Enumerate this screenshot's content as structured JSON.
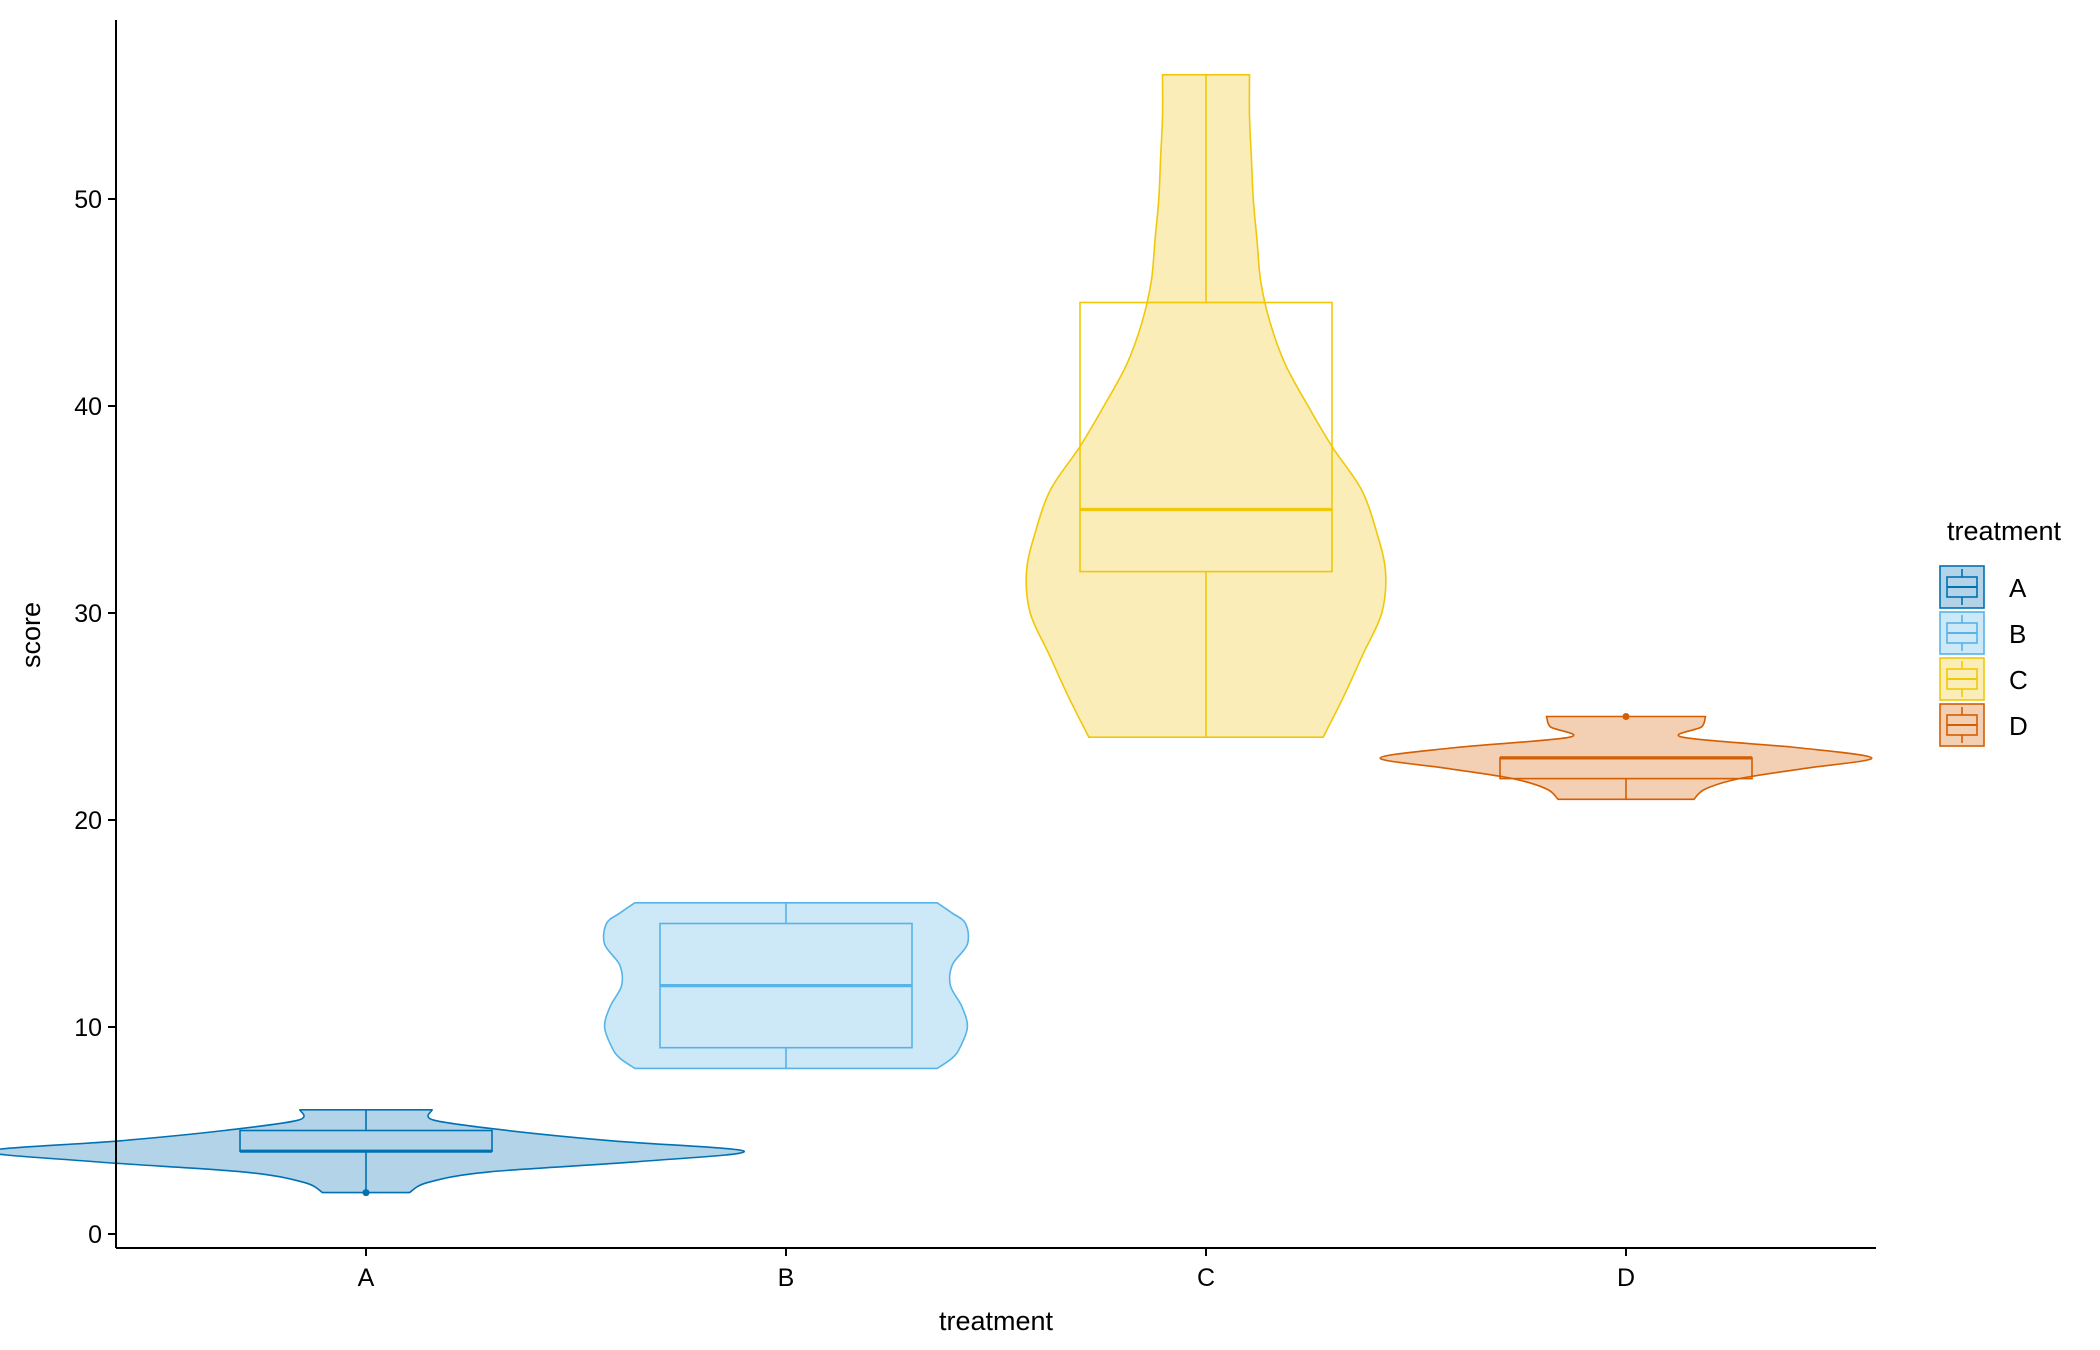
{
  "chart_data": {
    "type": "violin",
    "xlabel": "treatment",
    "ylabel": "score",
    "ylim": [
      0,
      56
    ],
    "yticks": [
      0,
      10,
      20,
      30,
      40,
      50
    ],
    "categories": [
      "A",
      "B",
      "C",
      "D"
    ],
    "legend": {
      "title": "treatment",
      "position": "right",
      "entries": [
        "A",
        "B",
        "C",
        "D"
      ]
    },
    "series": [
      {
        "category": "A",
        "color": "#0072B2",
        "fill": "#B3D3E9",
        "box": {
          "min": 2,
          "q1": 4,
          "median": 4,
          "q3": 5,
          "max": 6
        },
        "outliers": [
          2
        ],
        "violin": [
          [
            2,
            0.23
          ],
          [
            2.5,
            0.33
          ],
          [
            3,
            0.65
          ],
          [
            3.5,
            1.45
          ],
          [
            4,
            2.0
          ],
          [
            4.5,
            1.3
          ],
          [
            5,
            0.75
          ],
          [
            5.5,
            0.36
          ],
          [
            6,
            0.35
          ]
        ]
      },
      {
        "category": "B",
        "color": "#56B4E9",
        "fill": "#CDE8F7",
        "box": {
          "min": 8,
          "q1": 9,
          "median": 12,
          "q3": 15,
          "max": 16
        },
        "outliers": [],
        "violin": [
          [
            8,
            0.8
          ],
          [
            8.5,
            0.88
          ],
          [
            9,
            0.92
          ],
          [
            10,
            0.96
          ],
          [
            11,
            0.93
          ],
          [
            12,
            0.87
          ],
          [
            13,
            0.88
          ],
          [
            14,
            0.96
          ],
          [
            15,
            0.95
          ],
          [
            15.5,
            0.88
          ],
          [
            16,
            0.8
          ]
        ]
      },
      {
        "category": "C",
        "color": "#F0C808",
        "fill": "#FAEDB8",
        "box": {
          "min": 24,
          "q1": 32,
          "median": 35,
          "q3": 45,
          "max": 56
        },
        "outliers": [],
        "violin": [
          [
            24,
            0.62
          ],
          [
            26,
            0.73
          ],
          [
            28,
            0.83
          ],
          [
            30,
            0.93
          ],
          [
            32,
            0.95
          ],
          [
            34,
            0.9
          ],
          [
            36,
            0.82
          ],
          [
            38,
            0.67
          ],
          [
            40,
            0.54
          ],
          [
            42,
            0.42
          ],
          [
            44,
            0.34
          ],
          [
            46,
            0.29
          ],
          [
            48,
            0.27
          ],
          [
            50,
            0.25
          ],
          [
            52,
            0.24
          ],
          [
            54,
            0.23
          ],
          [
            56,
            0.23
          ]
        ]
      },
      {
        "category": "D",
        "color": "#D55E00",
        "fill": "#F3CFB3",
        "box": {
          "min": 21,
          "q1": 22,
          "median": 23,
          "q3": 23,
          "max": 23
        },
        "outliers": [
          25
        ],
        "violin": [
          [
            21,
            0.36
          ],
          [
            21.5,
            0.42
          ],
          [
            22,
            0.6
          ],
          [
            22.5,
            0.95
          ],
          [
            23,
            1.3
          ],
          [
            23.5,
            0.9
          ],
          [
            24,
            0.3
          ],
          [
            24.5,
            0.4
          ],
          [
            25,
            0.42
          ]
        ]
      }
    ]
  }
}
